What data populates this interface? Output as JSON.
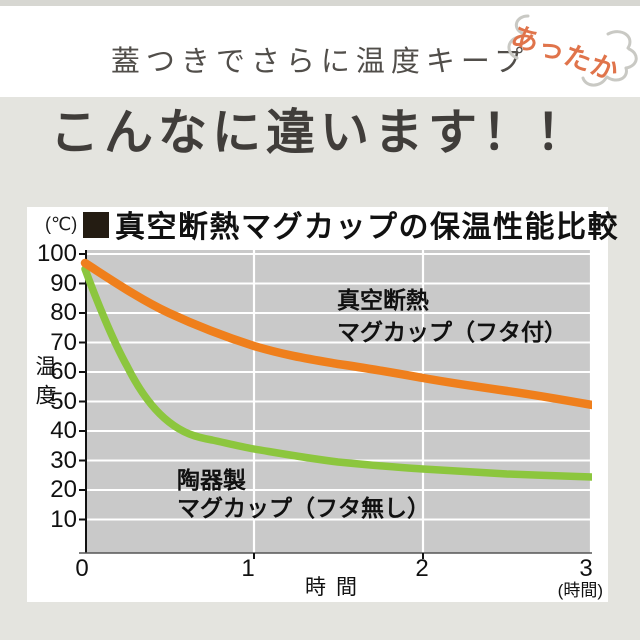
{
  "page": {
    "top_tagline": "蓋つきでさらに温度キープ",
    "badge_text": "あったか",
    "headline": "こんなに違います！！"
  },
  "chart": {
    "unit_label": "(℃)",
    "title": "真空断熱マグカップの保温性能比較",
    "y_axis_label": "温度",
    "x_axis_label": "時間",
    "x_axis_unit": "(時間)",
    "y_ticks": [
      "100",
      "90",
      "80",
      "70",
      "60",
      "50",
      "40",
      "30",
      "20",
      "10"
    ],
    "x_ticks": [
      "0",
      "1",
      "2",
      "3"
    ],
    "series_insulated": {
      "label_line1": "真空断熱",
      "label_line2": "マグカップ（フタ付）",
      "color": "#ef7f1c"
    },
    "series_ceramic": {
      "label_line1": "陶器製",
      "label_line2": "マグカップ（フタ無し）",
      "color": "#8cc63e"
    },
    "colors": {
      "plot_background": "#c9c9c9",
      "gridline": "#ffffff",
      "axis": "#111111",
      "panel_background": "#ffffff",
      "page_background": "#e4e4df",
      "badge_orange": "#e0744b",
      "steam_gray": "#c9c9c4"
    }
  },
  "chart_data": {
    "type": "line",
    "title": "真空断熱マグカップの保温性能比較",
    "xlabel": "時間 (hours)",
    "ylabel": "温度 (℃)",
    "xlim": [
      0,
      3
    ],
    "ylim": [
      0,
      100
    ],
    "grid": true,
    "x": [
      0,
      0.5,
      1,
      1.5,
      2,
      2.5,
      3
    ],
    "series": [
      {
        "name": "真空断熱マグカップ（フタ付）",
        "color": "#ef7f1c",
        "values": [
          97,
          80,
          69,
          63,
          58,
          53.5,
          49
        ]
      },
      {
        "name": "陶器製マグカップ（フタ無し）",
        "color": "#8cc63e",
        "values": [
          95,
          43,
          34,
          29.5,
          27,
          25.5,
          24.5
        ]
      }
    ]
  }
}
